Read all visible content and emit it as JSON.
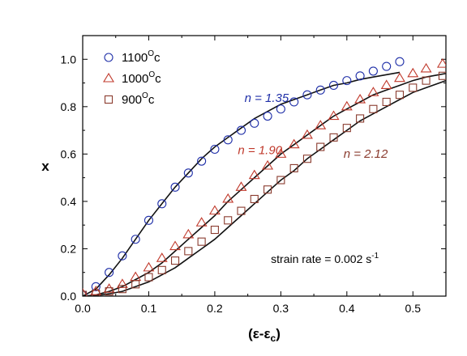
{
  "chart_data": {
    "type": "scatter",
    "title": "",
    "xlabel": "(ε-ε",
    "xlabel_sub": "c",
    "xlabel_close": ")",
    "ylabel": "x",
    "xlim": [
      0.0,
      0.55
    ],
    "ylim": [
      0.0,
      1.1
    ],
    "xticks": [
      0.0,
      0.1,
      0.2,
      0.3,
      0.4,
      0.5
    ],
    "xtick_labels": [
      "0.0",
      "0.1",
      "0.2",
      "0.3",
      "0.4",
      "0.5"
    ],
    "yticks": [
      0.0,
      0.2,
      0.4,
      0.6,
      0.8,
      1.0
    ],
    "ytick_labels": [
      "0.0",
      "0.2",
      "0.4",
      "0.6",
      "0.8",
      "1.0"
    ],
    "grid": false,
    "legend_position": "top-left",
    "series": [
      {
        "name": "1100",
        "name_sup": "O",
        "name_suffix": "c",
        "marker": "circle",
        "color": "#1f2fa8",
        "x": [
          0.0,
          0.02,
          0.04,
          0.06,
          0.08,
          0.1,
          0.12,
          0.14,
          0.16,
          0.18,
          0.2,
          0.22,
          0.24,
          0.26,
          0.28,
          0.3,
          0.32,
          0.34,
          0.36,
          0.38,
          0.4,
          0.42,
          0.44,
          0.46,
          0.48
        ],
        "y": [
          0.005,
          0.04,
          0.1,
          0.17,
          0.24,
          0.32,
          0.39,
          0.46,
          0.52,
          0.57,
          0.62,
          0.66,
          0.7,
          0.73,
          0.76,
          0.79,
          0.82,
          0.85,
          0.87,
          0.89,
          0.91,
          0.93,
          0.95,
          0.97,
          0.99
        ]
      },
      {
        "name": "1000",
        "name_sup": "O",
        "name_suffix": "c",
        "marker": "triangle",
        "color": "#c0392b",
        "x": [
          0.0,
          0.02,
          0.04,
          0.06,
          0.08,
          0.1,
          0.12,
          0.14,
          0.16,
          0.18,
          0.2,
          0.22,
          0.24,
          0.26,
          0.28,
          0.3,
          0.32,
          0.34,
          0.36,
          0.38,
          0.4,
          0.42,
          0.44,
          0.46,
          0.48,
          0.5,
          0.52,
          0.545
        ],
        "y": [
          0.01,
          0.02,
          0.03,
          0.05,
          0.08,
          0.12,
          0.16,
          0.21,
          0.26,
          0.31,
          0.36,
          0.41,
          0.46,
          0.51,
          0.55,
          0.6,
          0.64,
          0.68,
          0.72,
          0.76,
          0.8,
          0.83,
          0.86,
          0.89,
          0.92,
          0.94,
          0.96,
          0.98
        ]
      },
      {
        "name": "900",
        "name_sup": "O",
        "name_suffix": "c",
        "marker": "square",
        "color": "#8a3b2e",
        "x": [
          0.0,
          0.02,
          0.04,
          0.06,
          0.08,
          0.1,
          0.12,
          0.14,
          0.16,
          0.18,
          0.2,
          0.22,
          0.24,
          0.26,
          0.28,
          0.3,
          0.32,
          0.34,
          0.36,
          0.38,
          0.4,
          0.42,
          0.44,
          0.46,
          0.48,
          0.5,
          0.52,
          0.545
        ],
        "y": [
          0.005,
          0.01,
          0.02,
          0.03,
          0.05,
          0.08,
          0.11,
          0.15,
          0.19,
          0.23,
          0.28,
          0.32,
          0.36,
          0.41,
          0.45,
          0.49,
          0.54,
          0.58,
          0.63,
          0.67,
          0.71,
          0.75,
          0.79,
          0.82,
          0.85,
          0.88,
          0.91,
          0.93
        ]
      }
    ],
    "fits": [
      {
        "color": "#111111",
        "n": 1.35,
        "x_max": 0.48,
        "x": [
          0.0,
          0.02,
          0.04,
          0.06,
          0.08,
          0.1,
          0.12,
          0.14,
          0.16,
          0.18,
          0.2,
          0.22,
          0.24,
          0.26,
          0.28,
          0.3,
          0.32,
          0.34,
          0.36,
          0.38,
          0.4,
          0.42,
          0.44,
          0.46,
          0.48
        ],
        "y": [
          0.0,
          0.03,
          0.09,
          0.16,
          0.24,
          0.32,
          0.39,
          0.46,
          0.52,
          0.58,
          0.63,
          0.67,
          0.71,
          0.75,
          0.78,
          0.81,
          0.83,
          0.85,
          0.87,
          0.89,
          0.9,
          0.915,
          0.925,
          0.935,
          0.945
        ]
      },
      {
        "color": "#111111",
        "n": 1.9,
        "x_max": 0.55,
        "x": [
          0.0,
          0.02,
          0.04,
          0.06,
          0.08,
          0.1,
          0.12,
          0.14,
          0.16,
          0.18,
          0.2,
          0.22,
          0.24,
          0.26,
          0.28,
          0.3,
          0.32,
          0.34,
          0.36,
          0.38,
          0.4,
          0.42,
          0.44,
          0.46,
          0.48,
          0.5,
          0.52,
          0.55
        ],
        "y": [
          0.0,
          0.005,
          0.02,
          0.04,
          0.07,
          0.1,
          0.14,
          0.19,
          0.24,
          0.29,
          0.34,
          0.4,
          0.45,
          0.5,
          0.55,
          0.6,
          0.64,
          0.68,
          0.72,
          0.76,
          0.79,
          0.82,
          0.85,
          0.87,
          0.89,
          0.91,
          0.925,
          0.94
        ]
      },
      {
        "color": "#111111",
        "n": 2.12,
        "x_max": 0.55,
        "x": [
          0.0,
          0.02,
          0.04,
          0.06,
          0.08,
          0.1,
          0.12,
          0.14,
          0.16,
          0.18,
          0.2,
          0.22,
          0.24,
          0.26,
          0.28,
          0.3,
          0.32,
          0.34,
          0.36,
          0.38,
          0.4,
          0.42,
          0.44,
          0.46,
          0.48,
          0.5,
          0.52,
          0.55
        ],
        "y": [
          0.0,
          0.002,
          0.01,
          0.02,
          0.04,
          0.06,
          0.09,
          0.12,
          0.16,
          0.2,
          0.24,
          0.29,
          0.34,
          0.39,
          0.44,
          0.49,
          0.53,
          0.58,
          0.62,
          0.66,
          0.7,
          0.74,
          0.77,
          0.8,
          0.83,
          0.86,
          0.88,
          0.91
        ]
      }
    ],
    "annotations": [
      {
        "text": "n = 1.35",
        "color": "#1f2fa8",
        "x": 0.245,
        "y": 0.82
      },
      {
        "text": "n = 1.90",
        "color": "#c0392b",
        "x": 0.235,
        "y": 0.6
      },
      {
        "text": "n = 2.12",
        "color": "#8a3b2e",
        "x": 0.395,
        "y": 0.585
      }
    ],
    "note": {
      "text": "strain rate = 0.002 s",
      "sup": "-1",
      "x": 0.285,
      "y": 0.14
    }
  }
}
